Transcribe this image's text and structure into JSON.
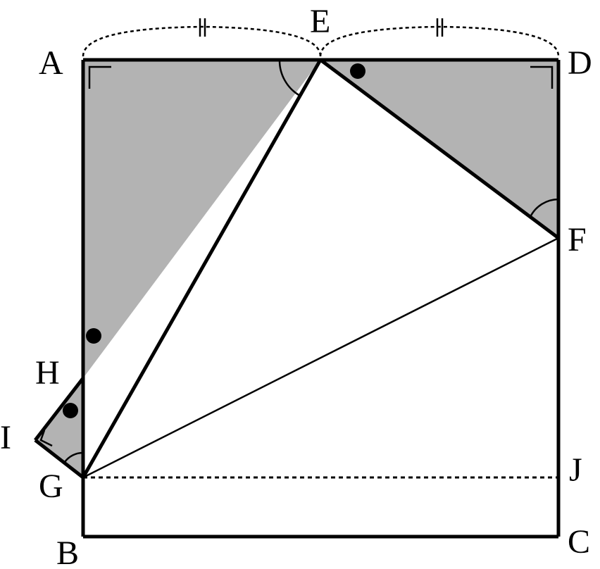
{
  "figure": {
    "colors": {
      "stroke": "#000000",
      "shade": "#b3b3b3",
      "background": "#ffffff"
    },
    "labels": {
      "A": "A",
      "B": "B",
      "C": "C",
      "D": "D",
      "E": "E",
      "F": "F",
      "G": "G",
      "H": "H",
      "I": "I",
      "J": "J"
    }
  }
}
